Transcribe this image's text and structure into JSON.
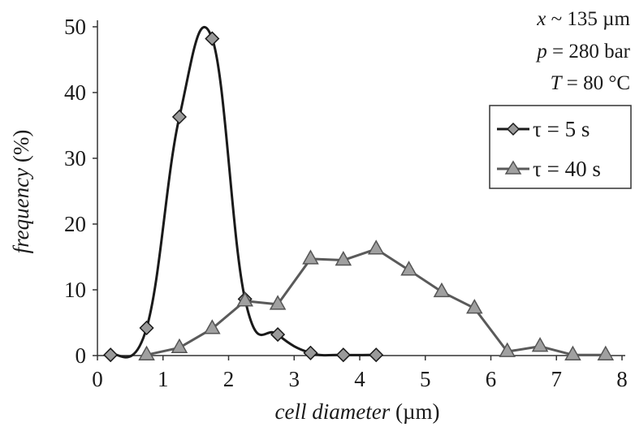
{
  "chart_data": {
    "type": "line",
    "xlabel_italic": "cell diameter",
    "xlabel_unit": " (µm)",
    "ylabel_italic": "frequency",
    "ylabel_unit": " (%)",
    "xlim": [
      0,
      8
    ],
    "ylim": [
      0,
      50
    ],
    "xticks": [
      "0",
      "1",
      "2",
      "3",
      "4",
      "5",
      "6",
      "7",
      "8"
    ],
    "yticks": [
      "0",
      "10",
      "20",
      "30",
      "40",
      "50"
    ],
    "grid": false,
    "legend_position": "top-right",
    "annotations": [
      {
        "var": "x",
        "rest": " ~ 135 µm"
      },
      {
        "var": "p",
        "rest": " = 280 bar"
      },
      {
        "var": "T",
        "rest": " = 80 °C"
      }
    ],
    "series": [
      {
        "name": "τ = 5 s",
        "marker": "diamond",
        "color": "#1a1a1a",
        "marker_color": "#9a9a9a",
        "smooth": true,
        "x": [
          0.2,
          0.75,
          1.25,
          1.75,
          2.25,
          2.75,
          3.25,
          3.75,
          4.25
        ],
        "y": [
          0.1,
          4.2,
          36.3,
          48.2,
          8.6,
          3.2,
          0.4,
          0.1,
          0.1
        ]
      },
      {
        "name": "τ = 40 s",
        "marker": "triangle",
        "color": "#5a5a5a",
        "marker_color": "#a0a0a0",
        "smooth": false,
        "x": [
          0.75,
          1.25,
          1.75,
          2.25,
          2.75,
          3.25,
          3.75,
          4.25,
          4.75,
          5.25,
          5.75,
          6.25,
          6.75,
          7.25,
          7.75
        ],
        "y": [
          0.1,
          1.2,
          4.1,
          8.3,
          7.8,
          14.7,
          14.5,
          16.2,
          13.0,
          9.7,
          7.2,
          0.6,
          1.4,
          0.1,
          0.1
        ]
      }
    ]
  }
}
